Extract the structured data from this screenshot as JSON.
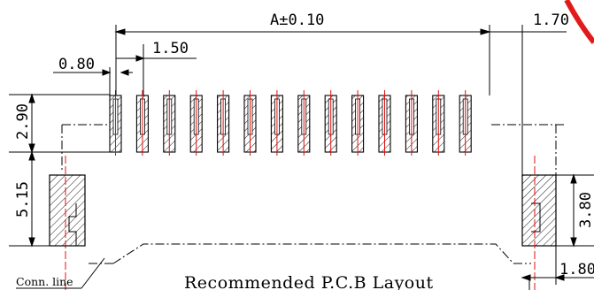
{
  "drawing": {
    "title": "Recommended P.C.B Layout",
    "conn_line_label": "Conn. line",
    "pad_count": 14,
    "dimensions": {
      "overall_pitch_span": "A±0.10",
      "right_offset": "1.70",
      "pitch": "1.50",
      "pad_width": "0.80",
      "pad_height": "2.90",
      "mount_pad_height": "5.15",
      "right_mount_height": "3.80",
      "right_mount_width": "1.80"
    },
    "colors": {
      "line": "#000000",
      "centerline": "#e01010",
      "stamp_red": "#e11b1b"
    }
  }
}
